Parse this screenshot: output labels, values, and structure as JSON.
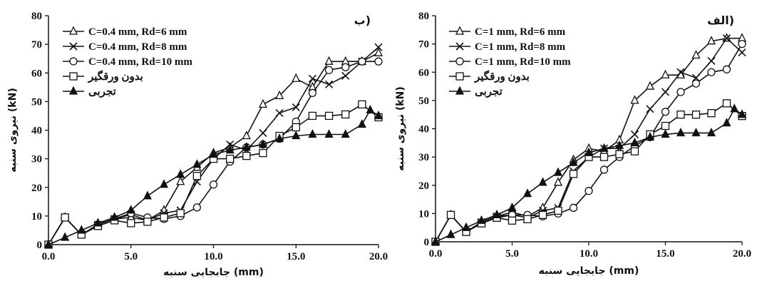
{
  "chart_data": [
    {
      "type": "line",
      "panel_label": "ب)",
      "xlabel": "جابجایی سنبه (mm)",
      "ylabel": "نیروی سنبه (kN)",
      "xlim": [
        0,
        20
      ],
      "ylim": [
        0,
        80
      ],
      "xticks": [
        "0.0",
        "5.0",
        "10.0",
        "15.0",
        "20.0"
      ],
      "yticks": [
        "0",
        "10",
        "20",
        "30",
        "40",
        "50",
        "60",
        "70",
        "80"
      ],
      "grid": false,
      "legend_position": "top-left",
      "series": [
        {
          "name": "C=0.4 mm, Rd=6 mm",
          "marker": "triangle-open",
          "x": [
            0,
            1,
            2,
            3,
            4,
            5,
            6,
            7,
            8,
            9,
            10,
            11,
            12,
            13,
            14,
            15,
            16,
            17,
            18,
            19,
            20
          ],
          "y": [
            0,
            9.5,
            3.5,
            7,
            9,
            9.5,
            8.5,
            12,
            22,
            27,
            32,
            34,
            38,
            49,
            52,
            58,
            55,
            64,
            64,
            64,
            67
          ]
        },
        {
          "name": "C=0.4 mm, Rd=8 mm",
          "marker": "x",
          "x": [
            0,
            1,
            2,
            3,
            4,
            5,
            6,
            7,
            8,
            9,
            10,
            11,
            12,
            13,
            14,
            15,
            16,
            17,
            18,
            19,
            20
          ],
          "y": [
            0,
            9.5,
            3.5,
            7,
            9,
            10.5,
            8.5,
            11,
            12,
            22,
            30,
            35,
            33,
            39,
            46,
            48,
            58,
            56,
            59,
            64,
            69
          ]
        },
        {
          "name": "C=0.4 mm, Rd=10 mm",
          "marker": "circle-open",
          "x": [
            0,
            1,
            2,
            3,
            4,
            5,
            6,
            7,
            8,
            9,
            10,
            11,
            12,
            13,
            14,
            15,
            16,
            17,
            18,
            19,
            20
          ],
          "y": [
            0,
            9.5,
            3.5,
            7,
            9,
            11,
            9.5,
            9,
            10,
            13,
            21,
            29,
            34,
            35,
            37,
            43,
            53,
            61,
            62,
            64,
            64
          ]
        },
        {
          "name": "بدون ورقگیر",
          "marker": "square-open",
          "x": [
            0,
            1,
            2,
            3,
            4,
            5,
            6,
            7,
            8,
            9,
            10,
            11,
            12,
            13,
            14,
            15,
            16,
            17,
            18,
            19,
            20
          ],
          "y": [
            0,
            9.5,
            3.5,
            6.5,
            8.5,
            7.5,
            8,
            9.5,
            11,
            24,
            30,
            30,
            31,
            32,
            38,
            41,
            45,
            45,
            45.5,
            49,
            44.5
          ]
        },
        {
          "name": "تجربی",
          "marker": "triangle-filled",
          "x": [
            0,
            1,
            2,
            3,
            4,
            5,
            6,
            7,
            8,
            9,
            10,
            11,
            12,
            13,
            14,
            15,
            16,
            17,
            18,
            19,
            19.5,
            20
          ],
          "y": [
            0,
            2.5,
            5,
            7.5,
            9.5,
            12,
            17,
            21,
            24.5,
            28,
            31.5,
            33,
            34,
            35,
            37,
            38,
            38.5,
            38.5,
            38.5,
            42,
            47,
            45
          ]
        }
      ]
    },
    {
      "type": "line",
      "panel_label": "الف)",
      "xlabel": "جابجایی سنبه (mm)",
      "ylabel": "نیروی سنبه (kN)",
      "xlim": [
        0,
        20
      ],
      "ylim": [
        0,
        80
      ],
      "xticks": [
        "0.0",
        "5.0",
        "10.0",
        "15.0",
        "20.0"
      ],
      "yticks": [
        "0",
        "10",
        "20",
        "30",
        "40",
        "50",
        "60",
        "70",
        "80"
      ],
      "grid": false,
      "legend_position": "top-left",
      "series": [
        {
          "name": "C=1 mm, Rd=6 mm",
          "marker": "triangle-open",
          "x": [
            0,
            1,
            2,
            3,
            4,
            5,
            6,
            7,
            8,
            9,
            10,
            11,
            12,
            13,
            14,
            15,
            16,
            17,
            18,
            19,
            20
          ],
          "y": [
            0,
            9.5,
            3.5,
            7,
            9,
            10.5,
            9,
            12,
            21,
            29,
            33,
            32,
            36,
            50,
            55,
            59,
            59,
            66,
            71,
            72,
            72
          ]
        },
        {
          "name": "C=1 mm, Rd=8 mm",
          "marker": "x",
          "x": [
            0,
            1,
            2,
            3,
            4,
            5,
            6,
            7,
            8,
            9,
            10,
            11,
            12,
            13,
            14,
            15,
            16,
            17,
            18,
            19,
            20
          ],
          "y": [
            0,
            9.5,
            3.5,
            7,
            9,
            9.5,
            8.5,
            11,
            12,
            25,
            30,
            33,
            33,
            38,
            47,
            53,
            60,
            58,
            64,
            72,
            67
          ]
        },
        {
          "name": "C=1 mm, Rd=10 mm",
          "marker": "circle-open",
          "x": [
            0,
            1,
            2,
            3,
            4,
            5,
            6,
            7,
            8,
            9,
            10,
            11,
            12,
            13,
            14,
            15,
            16,
            17,
            18,
            19,
            20
          ],
          "y": [
            0,
            9.5,
            3.5,
            6.5,
            8.5,
            9.5,
            9.5,
            9,
            10,
            12,
            18,
            25.5,
            30,
            34,
            37,
            46,
            53,
            56,
            60,
            61,
            70
          ]
        },
        {
          "name": "بدون ورقگیر",
          "marker": "square-open",
          "x": [
            0,
            1,
            2,
            3,
            4,
            5,
            6,
            7,
            8,
            9,
            10,
            11,
            12,
            13,
            14,
            15,
            16,
            17,
            18,
            19,
            20
          ],
          "y": [
            0,
            9.5,
            3.5,
            6.5,
            8.5,
            7.5,
            8,
            9.5,
            11,
            24,
            30,
            30,
            31,
            32,
            38,
            41,
            45,
            45,
            45.5,
            49,
            44.5
          ]
        },
        {
          "name": "تجربی",
          "marker": "triangle-filled",
          "x": [
            0,
            1,
            2,
            3,
            4,
            5,
            6,
            7,
            8,
            9,
            10,
            11,
            12,
            13,
            14,
            15,
            16,
            17,
            18,
            19,
            19.5,
            20
          ],
          "y": [
            0,
            2.5,
            5,
            7.5,
            9.5,
            12,
            17,
            21,
            24.5,
            28,
            31.5,
            33,
            34,
            35,
            37,
            38,
            38.5,
            38.5,
            38.5,
            42,
            47,
            45
          ]
        }
      ]
    }
  ]
}
